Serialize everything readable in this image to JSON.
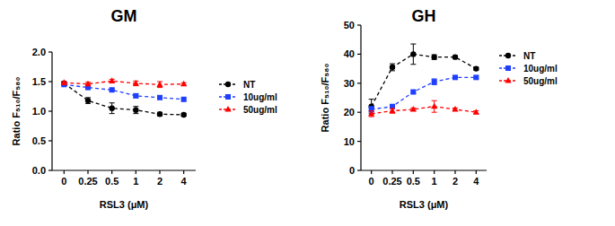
{
  "chart_data": [
    {
      "type": "line",
      "title": "GM",
      "x_label": "RSL3 (μM)",
      "y_label": "Ratio F₅₁₀/F₅₈₀",
      "categories": [
        "0",
        "0.25",
        "0.5",
        "1",
        "2",
        "4"
      ],
      "ylim": [
        0,
        2
      ],
      "yticks": [
        {
          "value": 0,
          "label": "0.0"
        },
        0.5,
        {
          "value": 1,
          "label": "1.0"
        },
        1.5,
        {
          "value": 2,
          "label": "2.0"
        }
      ],
      "legend": "right",
      "series": [
        {
          "name": "NT",
          "color": "#000000",
          "marker": "circle",
          "line_style": "dashed",
          "values": [
            1.47,
            1.18,
            1.05,
            1.02,
            0.95,
            0.94
          ],
          "errors": [
            0.03,
            0.05,
            0.09,
            0.06,
            0.03,
            0.02
          ]
        },
        {
          "name": "10ug/ml",
          "color": "#1f3fff",
          "marker": "square",
          "line_style": "dashed",
          "values": [
            1.45,
            1.4,
            1.36,
            1.26,
            1.23,
            1.2
          ],
          "errors": [
            0.02,
            0.02,
            0.02,
            0.03,
            0.02,
            0.02
          ]
        },
        {
          "name": "50ug/ml",
          "color": "#ff0000",
          "marker": "triangle",
          "line_style": "dashed",
          "values": [
            1.48,
            1.46,
            1.51,
            1.47,
            1.45,
            1.46
          ],
          "errors": [
            0.02,
            0.03,
            0.03,
            0.04,
            0.05,
            0.02
          ]
        }
      ]
    },
    {
      "type": "line",
      "title": "GH",
      "x_label": "RSL3 (μM)",
      "y_label": "Ratio F₅₁₀/F₅₈₀",
      "categories": [
        "0",
        "0.25",
        "0.5",
        "1",
        "2",
        "4"
      ],
      "ylim": [
        0,
        50
      ],
      "yticks": [
        0,
        10,
        20,
        30,
        40,
        50
      ],
      "legend": "right",
      "series": [
        {
          "name": "NT",
          "color": "#000000",
          "marker": "circle",
          "line_style": "dashed",
          "values": [
            22,
            35.5,
            40,
            39,
            39,
            35
          ],
          "errors": [
            2.5,
            1.2,
            3.5,
            0.8,
            0.5,
            0.5
          ]
        },
        {
          "name": "10ug/ml",
          "color": "#1f3fff",
          "marker": "square",
          "line_style": "dashed",
          "values": [
            21,
            22,
            27,
            30.5,
            32,
            32
          ],
          "errors": [
            1,
            0.5,
            0.5,
            1,
            0.5,
            0.5
          ]
        },
        {
          "name": "50ug/ml",
          "color": "#ff0000",
          "marker": "triangle",
          "line_style": "dashed",
          "values": [
            19.5,
            20.5,
            21,
            22,
            21,
            20
          ],
          "errors": [
            1,
            0.8,
            0.5,
            2,
            0.5,
            0.5
          ]
        }
      ]
    }
  ]
}
